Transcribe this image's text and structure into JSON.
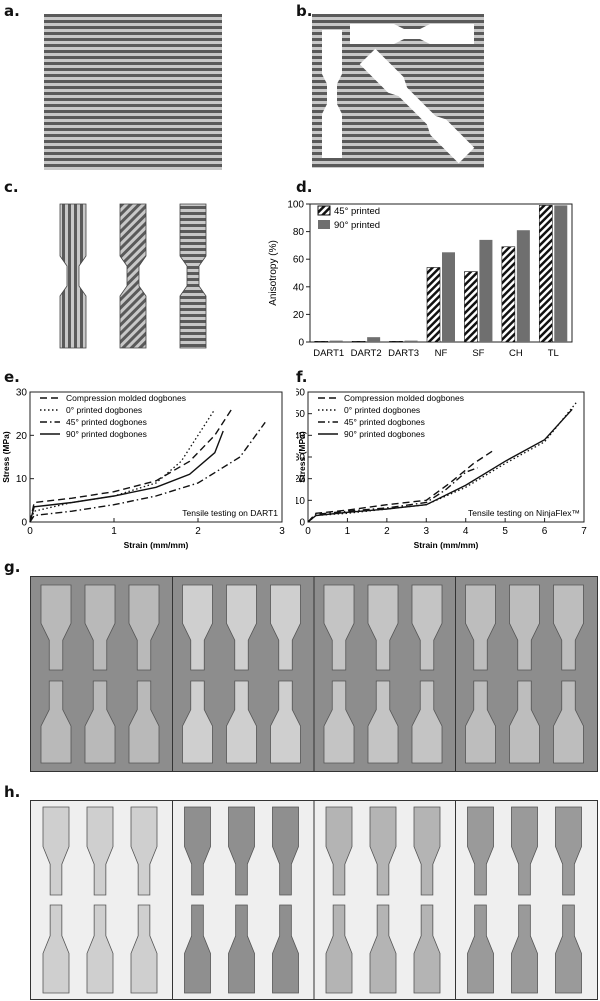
{
  "panels": {
    "a": "a.",
    "b": "b.",
    "c": "c.",
    "d": "d.",
    "e": "e.",
    "f": "f.",
    "g": "g.",
    "h": "h."
  },
  "colors": {
    "stripe_dark": "#5a5a5a",
    "stripe_light": "#c8c8c8",
    "bar_gray": "#6f6f6f",
    "photo_bg_g": "#8d8d8d",
    "photo_bg_h": "#efefef"
  },
  "chart_data": [
    {
      "type": "bar",
      "panel": "d",
      "categories": [
        "DART1",
        "DART2",
        "DART3",
        "NF",
        "SF",
        "CH",
        "TL"
      ],
      "series": [
        {
          "name": "45° printed",
          "values": [
            0.5,
            0.5,
            0.5,
            54,
            51,
            69,
            99
          ],
          "pattern": "hatched"
        },
        {
          "name": "90° printed",
          "values": [
            1,
            3.5,
            1,
            65,
            74,
            81,
            99
          ],
          "pattern": "solid"
        }
      ],
      "xlabel": "",
      "ylabel": "Anisotropy (%)",
      "ylim": [
        0,
        100
      ],
      "yticks": [
        0,
        20,
        40,
        60,
        80,
        100
      ],
      "legend": "top-left"
    },
    {
      "type": "line",
      "panel": "e",
      "xlabel": "Strain (mm/mm)",
      "ylabel": "Stress (MPa)",
      "xlim": [
        0,
        3
      ],
      "ylim": [
        0,
        30
      ],
      "xticks": [
        0,
        1,
        2,
        3
      ],
      "yticks": [
        0,
        10,
        20,
        30
      ],
      "annotation": "Tensile testing on DART1",
      "legend": "top-left",
      "series": [
        {
          "name": "Compression molded dogbones",
          "style": "dashed",
          "x": [
            0,
            0.05,
            0.5,
            1.0,
            1.5,
            1.9,
            2.2,
            2.4
          ],
          "y": [
            0,
            4.5,
            5.5,
            7,
            9.5,
            14,
            20,
            26
          ]
        },
        {
          "name": "0° printed dogbones",
          "style": "dotted",
          "x": [
            0,
            0.05,
            0.5,
            1.0,
            1.5,
            1.8,
            2.0,
            2.2
          ],
          "y": [
            0,
            2.5,
            4.5,
            6,
            9,
            14,
            20,
            26
          ]
        },
        {
          "name": "45° printed dogbones",
          "style": "dashdot",
          "x": [
            0,
            0.05,
            0.5,
            1.0,
            1.5,
            2.0,
            2.5,
            2.8
          ],
          "y": [
            0,
            1.5,
            2.5,
            4,
            6,
            9,
            15,
            23
          ]
        },
        {
          "name": "90° printed dogbones",
          "style": "solid",
          "x": [
            0,
            0.05,
            0.5,
            1.0,
            1.5,
            1.9,
            2.2,
            2.3
          ],
          "y": [
            0,
            3.5,
            4.5,
            6,
            8,
            11,
            16,
            21
          ]
        }
      ]
    },
    {
      "type": "line",
      "panel": "f",
      "xlabel": "Strain (mm/mm)",
      "ylabel": "Stress (MPa)",
      "xlim": [
        0,
        7
      ],
      "ylim": [
        0,
        60
      ],
      "xticks": [
        0,
        1,
        2,
        3,
        4,
        5,
        6,
        7
      ],
      "yticks": [
        0,
        10,
        20,
        30,
        40,
        50,
        60
      ],
      "annotation": "Tensile testing on NinjaFlex™",
      "legend": "top-left",
      "series": [
        {
          "name": "Compression molded dogbones",
          "style": "dashed",
          "x": [
            0,
            0.2,
            1,
            2,
            3,
            3.6,
            4.2,
            4.7
          ],
          "y": [
            0,
            4,
            5.5,
            8,
            10,
            18,
            27,
            33
          ]
        },
        {
          "name": "0° printed dogbones",
          "style": "dotted",
          "x": [
            0,
            0.2,
            1,
            2,
            3,
            4,
            5,
            6,
            6.8
          ],
          "y": [
            0,
            3,
            4,
            6,
            8,
            16,
            27,
            37,
            55
          ]
        },
        {
          "name": "45° printed dogbones",
          "style": "dashdot",
          "x": [
            0,
            0.2,
            1,
            2,
            3,
            3.5,
            4,
            4.3
          ],
          "y": [
            0,
            3.5,
            5,
            6.5,
            9,
            15,
            23,
            25
          ]
        },
        {
          "name": "90° printed dogbones",
          "style": "solid",
          "x": [
            0,
            0.2,
            1,
            2,
            3,
            4,
            5,
            6,
            6.7
          ],
          "y": [
            0,
            3,
            4.5,
            6,
            8,
            17,
            28,
            38,
            52
          ]
        }
      ]
    }
  ]
}
